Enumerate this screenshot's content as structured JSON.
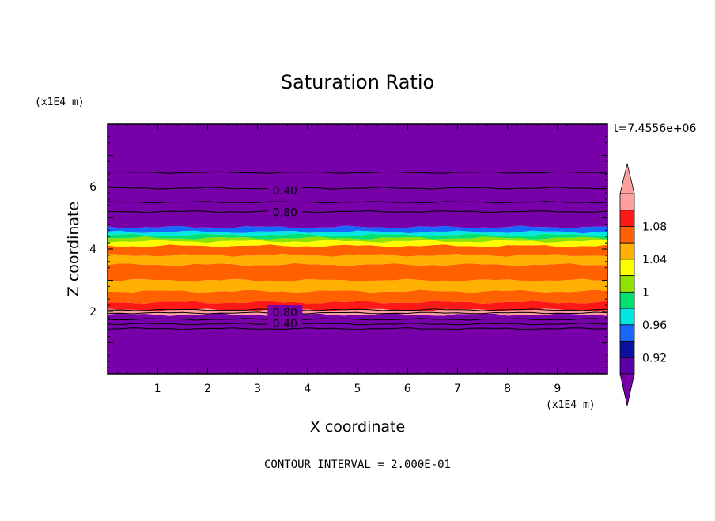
{
  "chart_data": {
    "type": "heatmap",
    "title": "Saturation Ratio",
    "xlabel": "X coordinate",
    "ylabel": "Z coordinate",
    "x_unit": "(x1E4 m)",
    "y_unit": "(x1E4 m)",
    "xlim": [
      0,
      10
    ],
    "ylim": [
      0,
      8
    ],
    "x_ticks": [
      "1",
      "2",
      "3",
      "4",
      "5",
      "6",
      "7",
      "8",
      "9"
    ],
    "y_ticks": [
      "2",
      "4",
      "6"
    ],
    "time_label": "t=7.4556e+06",
    "footer": "CONTOUR INTERVAL = 2.000E-01",
    "colorbar": {
      "colors": [
        "#5a00a8",
        "#0a10a0",
        "#1868ff",
        "#00e8e0",
        "#00e070",
        "#90e000",
        "#ffff00",
        "#ffb000",
        "#ff6000",
        "#ff1818",
        "#ffa0a0"
      ],
      "under_color": "#7800a8",
      "over_color": "#ffa0a0",
      "tick_labels": [
        "0.92",
        "0.96",
        "1",
        "1.04",
        "1.08"
      ]
    },
    "layers": [
      {
        "z0": 0.0,
        "z1": 1.9,
        "value": "0.40",
        "color": "#7800a8"
      },
      {
        "z0": 1.9,
        "z1": 2.05,
        "value": "1.10",
        "color": "#ffa0a0"
      },
      {
        "z0": 2.05,
        "z1": 2.3,
        "value": "1.08",
        "color": "#ff1818"
      },
      {
        "z0": 2.3,
        "z1": 2.65,
        "value": "1.06",
        "color": "#ff6000"
      },
      {
        "z0": 2.65,
        "z1": 3.0,
        "value": "1.05",
        "color": "#ffb000"
      },
      {
        "z0": 3.0,
        "z1": 3.5,
        "value": "1.06",
        "color": "#ff6000"
      },
      {
        "z0": 3.5,
        "z1": 3.8,
        "value": "1.05",
        "color": "#ffb000"
      },
      {
        "z0": 3.8,
        "z1": 4.1,
        "value": "1.06",
        "color": "#ff6000"
      },
      {
        "z0": 4.1,
        "z1": 4.25,
        "value": "1.03",
        "color": "#ffff00"
      },
      {
        "z0": 4.25,
        "z1": 4.35,
        "value": "1.01",
        "color": "#90e000"
      },
      {
        "z0": 4.35,
        "z1": 4.45,
        "value": "0.99",
        "color": "#00e070"
      },
      {
        "z0": 4.45,
        "z1": 4.55,
        "value": "0.97",
        "color": "#00e8e0"
      },
      {
        "z0": 4.55,
        "z1": 4.7,
        "value": "0.95",
        "color": "#1868ff"
      },
      {
        "z0": 4.7,
        "z1": 8.0,
        "value": "0.40",
        "color": "#7800a8"
      }
    ],
    "contour_labels": [
      "0.40",
      "0.80",
      "0.80",
      "0.40"
    ]
  }
}
